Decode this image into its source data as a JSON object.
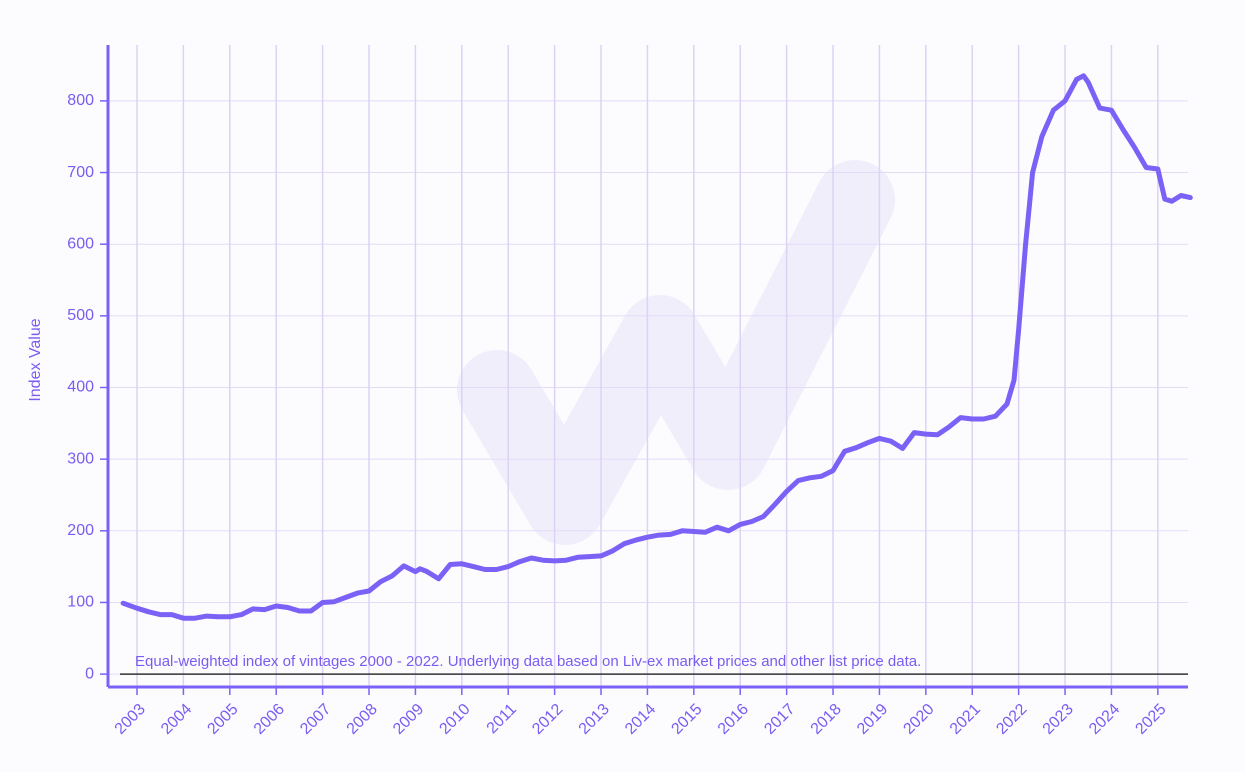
{
  "chart_data": {
    "type": "line",
    "y_label": "Index Value",
    "annotation": "Equal-weighted index of vintages 2000 - 2022. Underlying data based on Liv-ex market prices and other list price data.",
    "x": [
      2002.7,
      2003.0,
      2003.25,
      2003.5,
      2003.75,
      2004.0,
      2004.25,
      2004.5,
      2004.75,
      2005.0,
      2005.25,
      2005.5,
      2005.75,
      2006.0,
      2006.25,
      2006.5,
      2006.75,
      2007.0,
      2007.25,
      2007.5,
      2007.75,
      2008.0,
      2008.25,
      2008.5,
      2008.75,
      2009.0,
      2009.1,
      2009.25,
      2009.5,
      2009.75,
      2010.0,
      2010.25,
      2010.5,
      2010.75,
      2011.0,
      2011.25,
      2011.5,
      2011.75,
      2012.0,
      2012.25,
      2012.5,
      2012.75,
      2013.0,
      2013.25,
      2013.5,
      2013.75,
      2014.0,
      2014.25,
      2014.5,
      2014.75,
      2015.0,
      2015.25,
      2015.5,
      2015.75,
      2016.0,
      2016.25,
      2016.5,
      2016.75,
      2017.0,
      2017.25,
      2017.5,
      2017.75,
      2018.0,
      2018.25,
      2018.5,
      2018.75,
      2019.0,
      2019.25,
      2019.5,
      2019.75,
      2020.0,
      2020.25,
      2020.5,
      2020.75,
      2021.0,
      2021.25,
      2021.5,
      2021.75,
      2021.9,
      2022.0,
      2022.15,
      2022.3,
      2022.5,
      2022.75,
      2023.0,
      2023.25,
      2023.4,
      2023.5,
      2023.75,
      2024.0,
      2024.25,
      2024.5,
      2024.75,
      2025.0,
      2025.15,
      2025.3,
      2025.5,
      2025.7
    ],
    "series": [
      {
        "name": "Index",
        "color": "#7b61f5",
        "values": [
          99,
          92,
          87,
          83,
          83,
          78,
          78,
          81,
          80,
          80,
          83,
          91,
          90,
          95,
          93,
          88,
          88,
          100,
          101,
          107,
          113,
          116,
          129,
          137,
          151,
          143,
          147,
          143,
          133,
          153,
          154,
          150,
          146,
          146,
          150,
          157,
          162,
          159,
          158,
          159,
          163,
          164,
          165,
          172,
          182,
          187,
          191,
          194,
          195,
          200,
          199,
          198,
          205,
          200,
          209,
          213,
          220,
          237,
          255,
          270,
          274,
          276,
          284,
          311,
          316,
          323,
          329,
          325,
          315,
          337,
          335,
          334,
          345,
          358,
          356,
          356,
          360,
          377,
          410,
          480,
          600,
          700,
          750,
          787,
          800,
          830,
          835,
          826,
          790,
          787,
          760,
          735,
          707,
          705,
          663,
          660,
          668,
          665
        ]
      }
    ],
    "xlim": [
      2002.375,
      2025.65
    ],
    "xticks": [
      2003,
      2004,
      2005,
      2006,
      2007,
      2008,
      2009,
      2010,
      2011,
      2012,
      2013,
      2014,
      2015,
      2016,
      2017,
      2018,
      2019,
      2020,
      2021,
      2022,
      2023,
      2024,
      2025
    ],
    "ylim": [
      -18,
      878
    ],
    "yticks": [
      0,
      100,
      200,
      300,
      400,
      500,
      600,
      700,
      800
    ],
    "grid": true
  }
}
